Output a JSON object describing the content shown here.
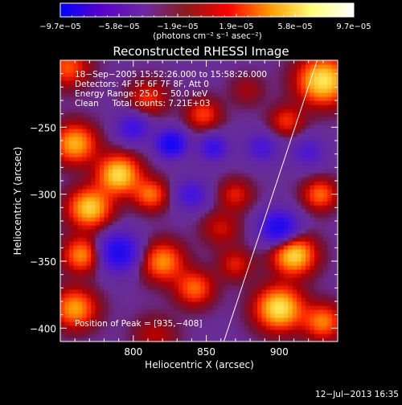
{
  "chart_data": {
    "type": "heatmap",
    "title": "Reconstructed RHESSI Image",
    "xlabel": "Heliocentric X (arcsec)",
    "ylabel": "Heliocentric Y (arcsec)",
    "xlim": [
      750,
      940
    ],
    "ylim": [
      -410,
      -200
    ],
    "xticks": [
      800,
      850,
      900
    ],
    "xtick_labels": [
      "800",
      "850",
      "900"
    ],
    "yticks": [
      -400,
      -350,
      -300,
      -250
    ],
    "ytick_labels": [
      "−400",
      "−350",
      "−300",
      "−250"
    ],
    "colorbar": {
      "min": -9.7e-05,
      "max": 9.7e-05,
      "tick_labels": [
        "−9.7e−05",
        "−5.8e−05",
        "−1.9e−05",
        "1.9e−05",
        "5.8e−05",
        "9.7e−05"
      ],
      "unit_label": "(photons cm⁻² s⁻¹ asec⁻²)",
      "colors": [
        "#0000ff",
        "#5a00c8",
        "#6c2aa3",
        "#8b1a1a",
        "#ff0000",
        "#ff9a00",
        "#ffff7a",
        "#ffffff"
      ]
    },
    "annotations": [
      "18−Sep−2005 15:52:26.000 to 15:58:26.000",
      "Detectors: 4F 5F 6F 7F 8F, Att 0",
      "Energy Range: 25.0 − 50.0 keV",
      "Clean     Total counts: 7.21E+03"
    ],
    "peak_label": "Position of Peak = [935,−408]",
    "limb_line": [
      [
        862,
        -410
      ],
      [
        926,
        -200
      ]
    ],
    "map_features": [
      {
        "x": 755,
        "y": -205,
        "v": 0.5,
        "s": 10
      },
      {
        "x": 810,
        "y": -228,
        "v": 0.4,
        "s": 9
      },
      {
        "x": 848,
        "y": -240,
        "v": 0.45,
        "s": 8
      },
      {
        "x": 878,
        "y": -222,
        "v": 0.2,
        "s": 8
      },
      {
        "x": 930,
        "y": -215,
        "v": 0.95,
        "s": 12
      },
      {
        "x": 905,
        "y": -245,
        "v": 0.4,
        "s": 8
      },
      {
        "x": 800,
        "y": -250,
        "v": -0.55,
        "s": 8
      },
      {
        "x": 826,
        "y": -262,
        "v": -1.0,
        "s": 7
      },
      {
        "x": 855,
        "y": -265,
        "v": -0.6,
        "s": 7
      },
      {
        "x": 888,
        "y": -265,
        "v": -0.45,
        "s": 8
      },
      {
        "x": 920,
        "y": -268,
        "v": -0.4,
        "s": 8
      },
      {
        "x": 760,
        "y": -262,
        "v": 0.75,
        "s": 10
      },
      {
        "x": 790,
        "y": -285,
        "v": 0.9,
        "s": 10
      },
      {
        "x": 770,
        "y": -310,
        "v": 0.85,
        "s": 10
      },
      {
        "x": 812,
        "y": -300,
        "v": 0.55,
        "s": 8
      },
      {
        "x": 840,
        "y": -300,
        "v": -0.5,
        "s": 8
      },
      {
        "x": 870,
        "y": -300,
        "v": 0.35,
        "s": 8
      },
      {
        "x": 860,
        "y": -325,
        "v": 0.3,
        "s": 9
      },
      {
        "x": 900,
        "y": -325,
        "v": -0.9,
        "s": 9
      },
      {
        "x": 928,
        "y": -300,
        "v": 0.55,
        "s": 8
      },
      {
        "x": 790,
        "y": -343,
        "v": -0.85,
        "s": 10
      },
      {
        "x": 765,
        "y": -345,
        "v": 0.65,
        "s": 9
      },
      {
        "x": 820,
        "y": -350,
        "v": 0.65,
        "s": 10
      },
      {
        "x": 760,
        "y": -385,
        "v": 0.7,
        "s": 10
      },
      {
        "x": 842,
        "y": -370,
        "v": 0.55,
        "s": 9
      },
      {
        "x": 870,
        "y": -352,
        "v": 0.35,
        "s": 8
      },
      {
        "x": 910,
        "y": -345,
        "v": 0.9,
        "s": 10
      },
      {
        "x": 900,
        "y": -385,
        "v": 0.95,
        "s": 11
      },
      {
        "x": 930,
        "y": -395,
        "v": 0.6,
        "s": 9
      },
      {
        "x": 815,
        "y": -405,
        "v": 0.25,
        "s": 10
      }
    ]
  },
  "footer": {
    "timestamp": "12−Jul−2013 16:35"
  }
}
